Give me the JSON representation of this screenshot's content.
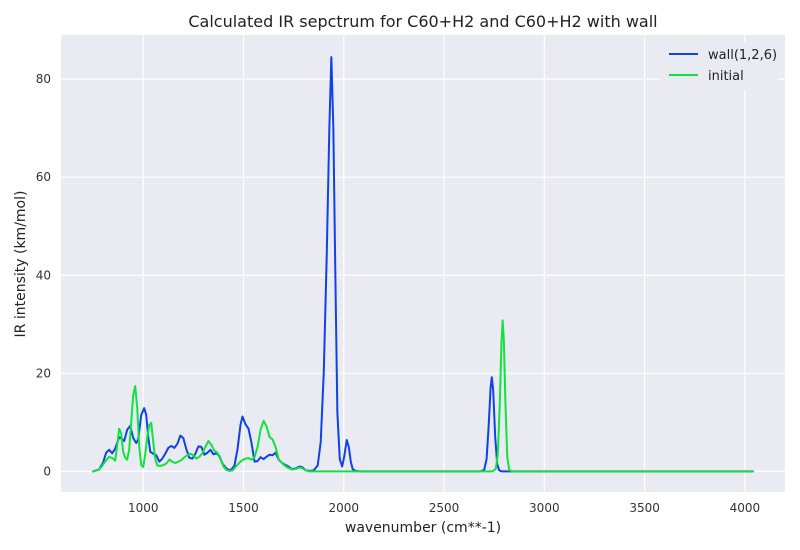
{
  "chart_data": {
    "type": "line",
    "title": "Calculated IR sepctrum for C60+H2 and C60+H2 with wall",
    "xlabel": "wavenumber (cm**-1)",
    "ylabel": "IR intensity (km/mol)",
    "xlim": [
      590,
      4200
    ],
    "ylim": [
      -4.2,
      89
    ],
    "xticks": [
      1000,
      1500,
      2000,
      2500,
      3000,
      3500,
      4000
    ],
    "yticks": [
      0,
      20,
      40,
      60,
      80
    ],
    "grid": true,
    "legend_position": "top-right",
    "series": [
      {
        "name": "wall(1,2,6)",
        "color": "#0f42e8",
        "points": [
          [
            750,
            0
          ],
          [
            780,
            0.4
          ],
          [
            800,
            1.8
          ],
          [
            815,
            3.8
          ],
          [
            830,
            4.4
          ],
          [
            845,
            3.7
          ],
          [
            860,
            4.6
          ],
          [
            880,
            7.0
          ],
          [
            895,
            6.6
          ],
          [
            905,
            6.2
          ],
          [
            920,
            8.5
          ],
          [
            935,
            9.3
          ],
          [
            950,
            6.8
          ],
          [
            965,
            5.8
          ],
          [
            975,
            6.5
          ],
          [
            990,
            11.5
          ],
          [
            1005,
            12.9
          ],
          [
            1015,
            11.5
          ],
          [
            1025,
            7.0
          ],
          [
            1035,
            4.0
          ],
          [
            1050,
            3.6
          ],
          [
            1065,
            3.3
          ],
          [
            1080,
            2.0
          ],
          [
            1095,
            2.6
          ],
          [
            1110,
            3.6
          ],
          [
            1125,
            4.8
          ],
          [
            1140,
            5.2
          ],
          [
            1155,
            4.8
          ],
          [
            1170,
            5.6
          ],
          [
            1185,
            7.3
          ],
          [
            1200,
            6.8
          ],
          [
            1215,
            4.5
          ],
          [
            1230,
            2.8
          ],
          [
            1245,
            2.6
          ],
          [
            1260,
            3.6
          ],
          [
            1275,
            5.1
          ],
          [
            1290,
            5.0
          ],
          [
            1305,
            3.4
          ],
          [
            1320,
            3.8
          ],
          [
            1335,
            4.4
          ],
          [
            1350,
            3.5
          ],
          [
            1365,
            3.7
          ],
          [
            1380,
            3.1
          ],
          [
            1395,
            1.6
          ],
          [
            1410,
            0.8
          ],
          [
            1425,
            0.3
          ],
          [
            1440,
            0.4
          ],
          [
            1455,
            1.2
          ],
          [
            1470,
            4.5
          ],
          [
            1485,
            9.5
          ],
          [
            1495,
            11.2
          ],
          [
            1510,
            9.6
          ],
          [
            1525,
            8.7
          ],
          [
            1540,
            5.8
          ],
          [
            1555,
            2.0
          ],
          [
            1570,
            2.1
          ],
          [
            1585,
            2.9
          ],
          [
            1600,
            2.5
          ],
          [
            1615,
            3.0
          ],
          [
            1630,
            3.4
          ],
          [
            1645,
            3.3
          ],
          [
            1660,
            3.8
          ],
          [
            1675,
            2.4
          ],
          [
            1690,
            1.8
          ],
          [
            1705,
            1.4
          ],
          [
            1720,
            1.1
          ],
          [
            1740,
            0.5
          ],
          [
            1760,
            0.6
          ],
          [
            1780,
            1.0
          ],
          [
            1795,
            0.8
          ],
          [
            1810,
            0.2
          ],
          [
            1830,
            0.1
          ],
          [
            1850,
            0.2
          ],
          [
            1870,
            1.2
          ],
          [
            1885,
            6.0
          ],
          [
            1900,
            20.0
          ],
          [
            1915,
            44.0
          ],
          [
            1928,
            70.0
          ],
          [
            1938,
            84.5
          ],
          [
            1948,
            70.0
          ],
          [
            1958,
            40.0
          ],
          [
            1968,
            12.0
          ],
          [
            1980,
            2.5
          ],
          [
            1992,
            1.0
          ],
          [
            2002,
            3.0
          ],
          [
            2015,
            6.4
          ],
          [
            2025,
            5.0
          ],
          [
            2035,
            2.0
          ],
          [
            2045,
            0.4
          ],
          [
            2060,
            0.1
          ],
          [
            2080,
            0
          ],
          [
            2680,
            0
          ],
          [
            2700,
            0.3
          ],
          [
            2712,
            2.5
          ],
          [
            2722,
            9.0
          ],
          [
            2732,
            17.0
          ],
          [
            2738,
            19.2
          ],
          [
            2745,
            16.5
          ],
          [
            2755,
            7.0
          ],
          [
            2765,
            1.5
          ],
          [
            2775,
            0.2
          ],
          [
            2790,
            0
          ],
          [
            4040,
            0
          ]
        ]
      },
      {
        "name": "initial",
        "color": "#10e43c",
        "points": [
          [
            750,
            0
          ],
          [
            770,
            0.2
          ],
          [
            790,
            0.8
          ],
          [
            810,
            2.0
          ],
          [
            830,
            3.0
          ],
          [
            850,
            2.6
          ],
          [
            860,
            2.2
          ],
          [
            870,
            5.2
          ],
          [
            880,
            8.7
          ],
          [
            890,
            7.8
          ],
          [
            900,
            4.0
          ],
          [
            910,
            2.8
          ],
          [
            920,
            2.4
          ],
          [
            930,
            4.4
          ],
          [
            940,
            10.0
          ],
          [
            950,
            15.6
          ],
          [
            960,
            17.4
          ],
          [
            970,
            13.0
          ],
          [
            980,
            5.0
          ],
          [
            990,
            1.3
          ],
          [
            1000,
            0.9
          ],
          [
            1010,
            3.5
          ],
          [
            1020,
            7.0
          ],
          [
            1030,
            9.4
          ],
          [
            1040,
            9.9
          ],
          [
            1050,
            6.0
          ],
          [
            1060,
            2.6
          ],
          [
            1070,
            1.2
          ],
          [
            1085,
            1.1
          ],
          [
            1100,
            1.3
          ],
          [
            1115,
            1.6
          ],
          [
            1130,
            2.4
          ],
          [
            1145,
            2.0
          ],
          [
            1160,
            1.7
          ],
          [
            1175,
            2.0
          ],
          [
            1190,
            2.3
          ],
          [
            1205,
            2.9
          ],
          [
            1220,
            3.3
          ],
          [
            1235,
            3.6
          ],
          [
            1250,
            3.3
          ],
          [
            1265,
            2.6
          ],
          [
            1280,
            3.0
          ],
          [
            1295,
            3.7
          ],
          [
            1310,
            5.0
          ],
          [
            1325,
            6.2
          ],
          [
            1340,
            5.4
          ],
          [
            1355,
            4.2
          ],
          [
            1370,
            3.8
          ],
          [
            1385,
            2.5
          ],
          [
            1400,
            1.0
          ],
          [
            1415,
            0.3
          ],
          [
            1430,
            0.1
          ],
          [
            1445,
            0.2
          ],
          [
            1460,
            0.9
          ],
          [
            1480,
            1.8
          ],
          [
            1495,
            2.3
          ],
          [
            1510,
            2.6
          ],
          [
            1525,
            2.7
          ],
          [
            1540,
            2.4
          ],
          [
            1555,
            2.9
          ],
          [
            1570,
            5.0
          ],
          [
            1585,
            8.5
          ],
          [
            1600,
            10.3
          ],
          [
            1615,
            9.2
          ],
          [
            1630,
            7.0
          ],
          [
            1645,
            6.5
          ],
          [
            1660,
            5.0
          ],
          [
            1675,
            2.5
          ],
          [
            1690,
            1.8
          ],
          [
            1705,
            1.2
          ],
          [
            1720,
            0.8
          ],
          [
            1740,
            0.4
          ],
          [
            1760,
            0.5
          ],
          [
            1780,
            0.8
          ],
          [
            1795,
            0.6
          ],
          [
            1810,
            0.2
          ],
          [
            1830,
            0
          ],
          [
            2740,
            0
          ],
          [
            2758,
            0.5
          ],
          [
            2768,
            3.5
          ],
          [
            2778,
            14.0
          ],
          [
            2786,
            26.0
          ],
          [
            2792,
            30.8
          ],
          [
            2798,
            27.0
          ],
          [
            2806,
            14.0
          ],
          [
            2815,
            3.0
          ],
          [
            2825,
            0.3
          ],
          [
            2840,
            0
          ],
          [
            4040,
            0
          ]
        ]
      }
    ]
  }
}
